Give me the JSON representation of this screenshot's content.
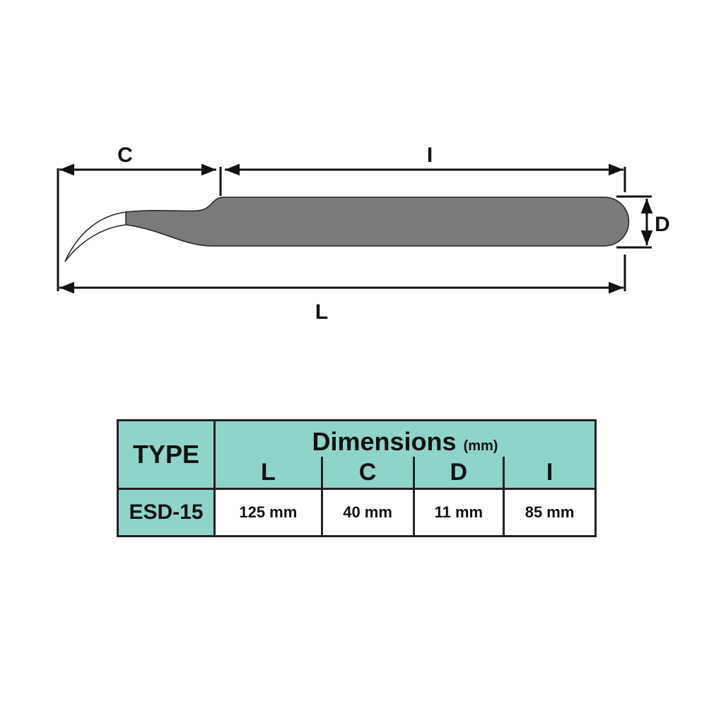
{
  "diagram": {
    "labels": {
      "c": "C",
      "i": "I",
      "l": "L",
      "d": "D"
    },
    "colors": {
      "body": "#7a7a7a",
      "line": "#111111"
    }
  },
  "table": {
    "type_header": "TYPE",
    "dimensions_header": "Dimensions",
    "unit": "(mm)",
    "columns": [
      "L",
      "C",
      "D",
      "I"
    ],
    "rows": [
      {
        "type": "ESD-15",
        "values": [
          "125 mm",
          "40 mm",
          "11 mm",
          "85 mm"
        ]
      }
    ],
    "header_color": "#8fd4c9"
  }
}
